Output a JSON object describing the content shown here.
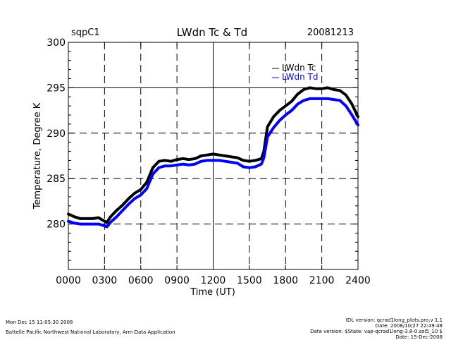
{
  "chart_data": {
    "type": "line",
    "site": "sqpC1",
    "title": "LWdn Tc & Td",
    "date": "20081213",
    "xlabel": "Time (UT)",
    "ylabel": "Temperature, Degree K",
    "xlim": [
      0,
      2400
    ],
    "ylim": [
      275,
      300
    ],
    "x_ticks": [
      0,
      300,
      600,
      900,
      1200,
      1500,
      1800,
      2100,
      2400
    ],
    "x_tick_labels": [
      "0000",
      "0300",
      "0600",
      "0900",
      "1200",
      "1500",
      "1800",
      "2100",
      "2400"
    ],
    "y_ticks": [
      280,
      285,
      290,
      295,
      300
    ],
    "y_tick_labels": [
      "280",
      "285",
      "290",
      "295",
      "300"
    ],
    "solid_hlines": [
      295
    ],
    "dashed_hlines": [
      280,
      285,
      290
    ],
    "solid_vlines": [
      1200
    ],
    "dashed_vlines": [
      300,
      600,
      900,
      1500,
      1800,
      2100
    ],
    "legend_position": "top-right",
    "series": [
      {
        "name": "LWdn Tc",
        "color": "#000000",
        "x": [
          0,
          50,
          100,
          150,
          200,
          250,
          300,
          320,
          350,
          400,
          450,
          500,
          550,
          600,
          650,
          700,
          750,
          800,
          850,
          900,
          950,
          1000,
          1050,
          1100,
          1150,
          1200,
          1250,
          1300,
          1350,
          1400,
          1450,
          1500,
          1550,
          1600,
          1620,
          1650,
          1700,
          1750,
          1800,
          1850,
          1900,
          1950,
          2000,
          2050,
          2100,
          2150,
          2200,
          2250,
          2300,
          2350,
          2400
        ],
        "values": [
          281.1,
          280.8,
          280.6,
          280.6,
          280.6,
          280.7,
          280.3,
          280.2,
          280.8,
          281.5,
          282.1,
          282.8,
          283.4,
          283.8,
          284.6,
          286.2,
          286.9,
          287.0,
          286.9,
          287.1,
          287.2,
          287.1,
          287.2,
          287.5,
          287.6,
          287.7,
          287.6,
          287.5,
          287.4,
          287.3,
          287.0,
          286.9,
          287.0,
          287.2,
          288.0,
          290.7,
          291.8,
          292.5,
          293.0,
          293.5,
          294.3,
          294.8,
          295.0,
          294.9,
          294.9,
          295.0,
          294.8,
          294.7,
          294.2,
          293.2,
          291.8
        ]
      },
      {
        "name": "LWdn Td",
        "color": "#0000ff",
        "x": [
          0,
          50,
          100,
          150,
          200,
          250,
          300,
          320,
          350,
          400,
          450,
          500,
          550,
          600,
          650,
          700,
          750,
          800,
          850,
          900,
          950,
          1000,
          1050,
          1100,
          1150,
          1200,
          1250,
          1300,
          1350,
          1400,
          1450,
          1500,
          1550,
          1600,
          1620,
          1650,
          1700,
          1750,
          1800,
          1850,
          1900,
          1950,
          2000,
          2050,
          2100,
          2150,
          2200,
          2250,
          2300,
          2350,
          2400
        ],
        "values": [
          280.3,
          280.1,
          280.0,
          280.0,
          280.0,
          280.0,
          279.8,
          279.7,
          280.2,
          280.8,
          281.5,
          282.2,
          282.8,
          283.2,
          283.9,
          285.5,
          286.2,
          286.4,
          286.4,
          286.5,
          286.6,
          286.5,
          286.6,
          286.9,
          287.0,
          287.0,
          287.0,
          286.9,
          286.8,
          286.7,
          286.3,
          286.2,
          286.3,
          286.6,
          287.3,
          289.6,
          290.6,
          291.4,
          292.0,
          292.5,
          293.2,
          293.6,
          293.8,
          293.8,
          293.8,
          293.8,
          293.7,
          293.6,
          293.0,
          292.0,
          290.9
        ]
      }
    ]
  },
  "footer": {
    "timestamp": "Mon Dec 15 11:05:30 2008",
    "organization": "Battelle Pacific Northwest National Laboratory, Arm Data Application",
    "idl_version": "IDL version: qcrad1long_plots.pro,v 1.1",
    "idl_date": "Date: 2008/10/27 22:49:48",
    "data_version": "Data version: $State: vap-qcrad1long-3.8-0.sol5_10 $",
    "data_date": "Date: 15-Dec-2008"
  }
}
